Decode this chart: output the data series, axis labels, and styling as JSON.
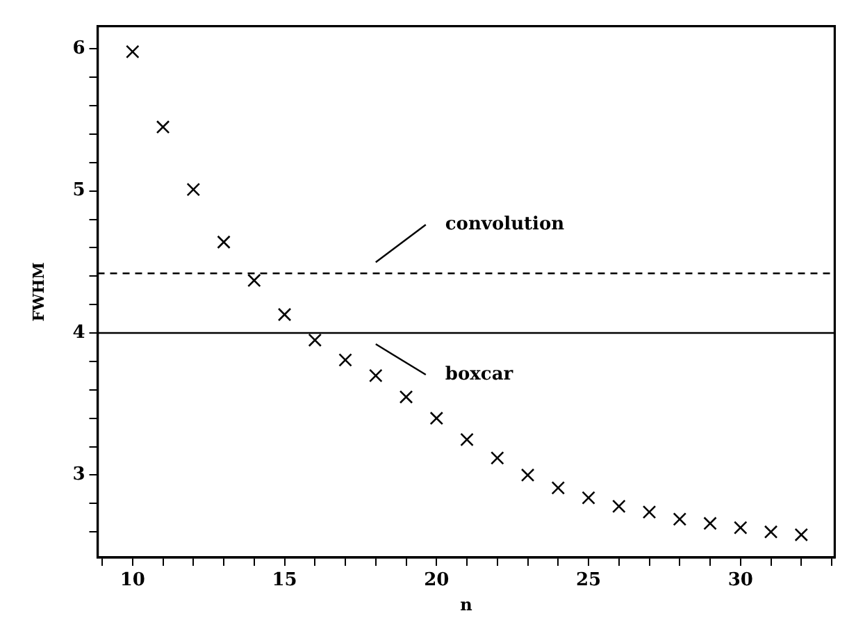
{
  "chart_data": {
    "type": "scatter",
    "xlabel": "n",
    "ylabel": "FWHM",
    "x": [
      10,
      11,
      12,
      13,
      14,
      15,
      16,
      17,
      18,
      19,
      20,
      21,
      22,
      23,
      24,
      25,
      26,
      27,
      28,
      29,
      30,
      31,
      32
    ],
    "series": [
      {
        "color": "#000000",
        "values": [
          5.98,
          5.45,
          5.01,
          4.64,
          4.37,
          4.13,
          3.95,
          3.81,
          3.7,
          3.55,
          3.4,
          3.25,
          3.12,
          3.0,
          2.91,
          2.84,
          2.78,
          2.74,
          2.69,
          2.66,
          2.63,
          2.6,
          2.58
        ]
      }
    ],
    "marker": "cross",
    "xlim": [
      8.85,
      33.1
    ],
    "xticks": [
      {
        "value": 9,
        "label": null
      },
      10,
      {
        "value": 11,
        "label": null
      },
      {
        "value": 12,
        "label": null
      },
      {
        "value": 13,
        "label": null
      },
      {
        "value": 14,
        "label": null
      },
      15,
      {
        "value": 16,
        "label": null
      },
      {
        "value": 17,
        "label": null
      },
      {
        "value": 18,
        "label": null
      },
      {
        "value": 19,
        "label": null
      },
      20,
      {
        "value": 21,
        "label": null
      },
      {
        "value": 22,
        "label": null
      },
      {
        "value": 23,
        "label": null
      },
      {
        "value": 24,
        "label": null
      },
      25,
      {
        "value": 26,
        "label": null
      },
      {
        "value": 27,
        "label": null
      },
      {
        "value": 28,
        "label": null
      },
      {
        "value": 29,
        "label": null
      },
      30,
      {
        "value": 31,
        "label": null
      },
      {
        "value": 32,
        "label": null
      },
      {
        "value": 33,
        "label": null
      }
    ],
    "ylim": [
      2.42,
      6.16
    ],
    "yticks": [
      {
        "value": 2.6,
        "label": null
      },
      {
        "value": 2.8,
        "label": null
      },
      3,
      {
        "value": 3.2,
        "label": null
      },
      {
        "value": 3.4,
        "label": null
      },
      {
        "value": 3.6,
        "label": null
      },
      {
        "value": 3.8,
        "label": null
      },
      4,
      {
        "value": 4.2,
        "label": null
      },
      {
        "value": 4.4,
        "label": null
      },
      {
        "value": 4.6,
        "label": null
      },
      {
        "value": 4.8,
        "label": null
      },
      5,
      {
        "value": 5.2,
        "label": null
      },
      {
        "value": 5.4,
        "label": null
      },
      {
        "value": 5.6,
        "label": null
      },
      {
        "value": 5.8,
        "label": null
      },
      6
    ],
    "ref_lines": [
      {
        "axis": "y",
        "value": 4.42,
        "label": "convolution",
        "line_style": "dashed",
        "color": "#000000"
      },
      {
        "axis": "y",
        "value": 4.0,
        "label": "boxcar",
        "line_style": "solid",
        "color": "#000000"
      }
    ],
    "grid": false,
    "legend": false
  }
}
